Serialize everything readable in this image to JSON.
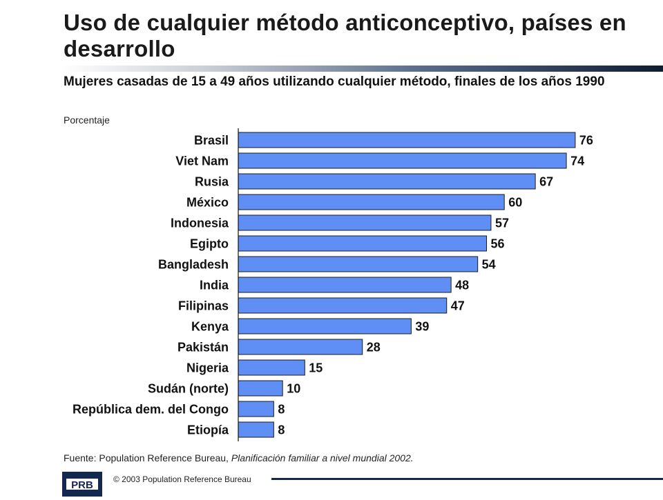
{
  "slide": {
    "title": "Uso de cualquier método anticonceptivo, países en desarrollo",
    "subtitle": "Mujeres casadas de 15 a 49 años utilizando cualquier método, finales de los años 1990",
    "unit": "Porcentaje",
    "source_prefix": "Fuente: Population Reference Bureau, ",
    "source_title": "Planificación familiar a nivel mundial 2002.",
    "copyright": "© 2003 Population Reference Bureau",
    "logo_text": "PRB"
  },
  "colors": {
    "bar": "#5f8ff5",
    "bar_stroke": "#1a1a1a",
    "rule_dark": "#14284f"
  },
  "chart_data": {
    "type": "bar",
    "orientation": "horizontal",
    "categories": [
      "Brasil",
      "Viet Nam",
      "Rusia",
      "México",
      "Indonesia",
      "Egipto",
      "Bangladesh",
      "India",
      "Filipinas",
      "Kenya",
      "Pakistán",
      "Nigeria",
      "Sudán (norte)",
      "República dem. del Congo",
      "Etiopía"
    ],
    "values": [
      76,
      74,
      67,
      60,
      57,
      56,
      54,
      48,
      47,
      39,
      28,
      15,
      10,
      8,
      8
    ],
    "title": "",
    "xlabel": "",
    "ylabel": "",
    "xlim": [
      0,
      80
    ],
    "data_labels": true,
    "grid": false,
    "legend": "none"
  }
}
